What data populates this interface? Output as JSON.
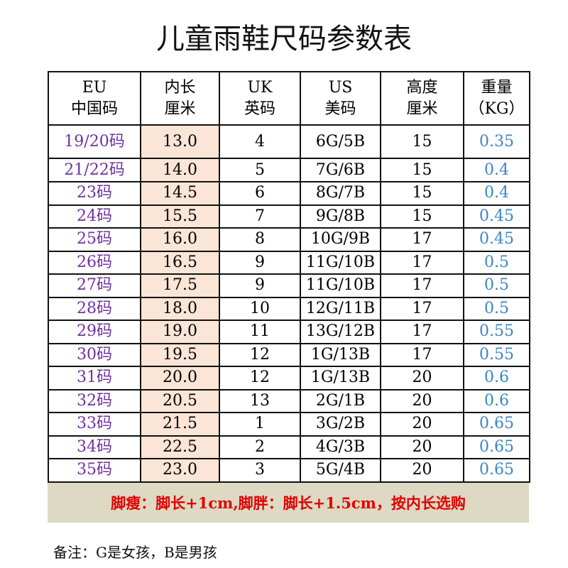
{
  "title": "儿童雨鞋尺码参数表",
  "table": {
    "header": [
      [
        "EU",
        "中国码"
      ],
      [
        "内长",
        "厘米"
      ],
      [
        "UK",
        "英码"
      ],
      [
        "US",
        "美码"
      ],
      [
        "高度",
        "厘米"
      ],
      [
        "重量",
        "（KG）"
      ]
    ],
    "rows": [
      [
        "19/20码",
        "13.0",
        "4",
        "6G/5B",
        "15",
        "0.35"
      ],
      [
        "21/22码",
        "14.0",
        "5",
        "7G/6B",
        "15",
        "0.4"
      ],
      [
        "23码",
        "14.5",
        "6",
        "8G/7B",
        "15",
        "0.4"
      ],
      [
        "24码",
        "15.5",
        "7",
        "9G/8B",
        "15",
        "0.45"
      ],
      [
        "25码",
        "16.0",
        "8",
        "10G/9B",
        "17",
        "0.45"
      ],
      [
        "26码",
        "16.5",
        "9",
        "11G/10B",
        "17",
        "0.5"
      ],
      [
        "27码",
        "17.5",
        "9",
        "11G/10B",
        "17",
        "0.5"
      ],
      [
        "28码",
        "18.0",
        "10",
        "12G/11B",
        "17",
        "0.5"
      ],
      [
        "29码",
        "19.0",
        "11",
        "13G/12B",
        "17",
        "0.55"
      ],
      [
        "30码",
        "19.5",
        "12",
        "1G/13B",
        "17",
        "0.55"
      ],
      [
        "31码",
        "20.0",
        "12",
        "1G/13B",
        "20",
        "0.6"
      ],
      [
        "32码",
        "20.5",
        "13",
        "2G/1B",
        "20",
        "0.6"
      ],
      [
        "33码",
        "21.5",
        "1",
        "3G/2B",
        "20",
        "0.65"
      ],
      [
        "34码",
        "22.5",
        "2",
        "4G/3B",
        "20",
        "0.65"
      ],
      [
        "35码",
        "23.0",
        "3",
        "5G/4B",
        "20",
        "0.65"
      ]
    ]
  },
  "footer": "脚瘦：脚长+1cm,脚胖：脚长+1.5cm，按内长选购",
  "note": "备注：G是女孩，B是男孩"
}
